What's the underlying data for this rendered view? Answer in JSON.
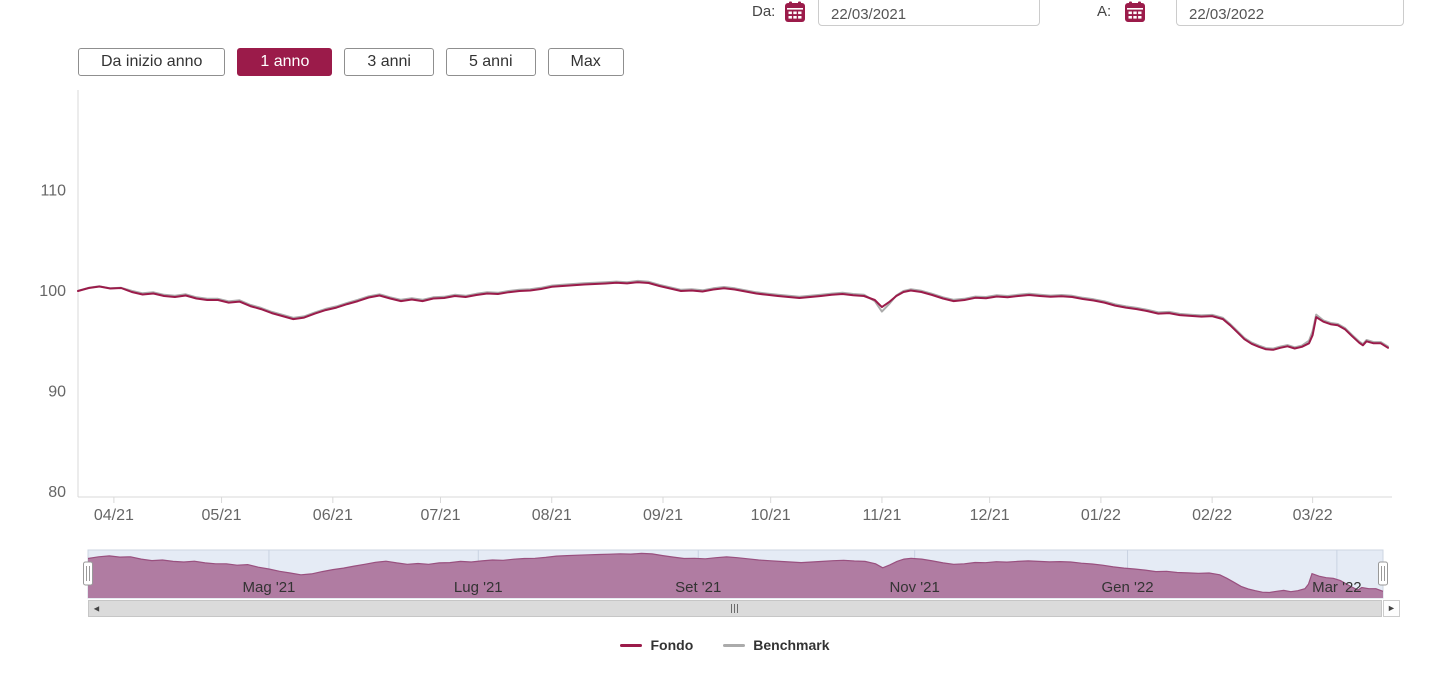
{
  "header": {
    "from_label": "Da:",
    "from_value": "22/03/2021",
    "to_label": "A:",
    "to_value": "22/03/2022"
  },
  "icons": {
    "from_calendar": "calendar-icon",
    "to_calendar": "calendar-icon",
    "scrollbar_left": "left-arrow-icon",
    "scrollbar_right": "right-arrow-icon"
  },
  "range_buttons": [
    {
      "label": "Da inizio anno",
      "selected": false
    },
    {
      "label": "1 anno",
      "selected": true
    },
    {
      "label": "3 anni",
      "selected": false
    },
    {
      "label": "5 anni",
      "selected": false
    },
    {
      "label": "Max",
      "selected": false
    }
  ],
  "colors": {
    "accent": "#9B1B4A",
    "benchmark": "#ABABAB",
    "axis_line": "#D9D9D9",
    "axis_text": "#666666",
    "nav_bg": "#E5EBF5",
    "nav_fill": "#B07CA2",
    "nav_line": "#99507F",
    "nav_grid": "#C9D2E2",
    "nav_text": "#333333",
    "scrollbar_track": "#DBDBDB",
    "scrollbar_border": "#C6C6C6"
  },
  "scrollbar": {
    "left_arrow": "◄",
    "right_arrow": "►"
  },
  "navigator": {
    "labels": [
      {
        "text": "Mag '21",
        "day": 51
      },
      {
        "text": "Lug '21",
        "day": 110
      },
      {
        "text": "Set '21",
        "day": 172
      },
      {
        "text": "Nov '21",
        "day": 233
      },
      {
        "text": "Gen '22",
        "day": 293
      },
      {
        "text": "Mar '22",
        "day": 352
      }
    ]
  },
  "chart_data": {
    "type": "line",
    "title": "",
    "xlabel": "",
    "ylabel": "",
    "grid": false,
    "legend_position": "bottom",
    "y_ticks": [
      80,
      90,
      100,
      110
    ],
    "ylim": [
      80,
      120
    ],
    "x_axis": {
      "unit": "days from 22/03/2021",
      "range": [
        0,
        365
      ]
    },
    "x_ticks": [
      {
        "label": "04/21",
        "day": 10
      },
      {
        "label": "05/21",
        "day": 40
      },
      {
        "label": "06/21",
        "day": 71
      },
      {
        "label": "07/21",
        "day": 101
      },
      {
        "label": "08/21",
        "day": 132
      },
      {
        "label": "09/21",
        "day": 163
      },
      {
        "label": "10/21",
        "day": 193
      },
      {
        "label": "11/21",
        "day": 224
      },
      {
        "label": "12/21",
        "day": 254
      },
      {
        "label": "01/22",
        "day": 285
      },
      {
        "label": "02/22",
        "day": 316
      },
      {
        "label": "03/22",
        "day": 344
      }
    ],
    "days": [
      0,
      3,
      6,
      9,
      12,
      15,
      18,
      21,
      24,
      27,
      30,
      33,
      36,
      39,
      42,
      45,
      48,
      51,
      54,
      57,
      60,
      63,
      66,
      69,
      72,
      75,
      78,
      81,
      84,
      87,
      90,
      93,
      96,
      99,
      102,
      105,
      108,
      111,
      114,
      117,
      120,
      123,
      126,
      129,
      132,
      135,
      138,
      141,
      144,
      147,
      150,
      153,
      156,
      159,
      162,
      165,
      168,
      171,
      174,
      177,
      180,
      183,
      186,
      189,
      192,
      195,
      198,
      201,
      204,
      207,
      210,
      213,
      216,
      219,
      222,
      224,
      226,
      228,
      230,
      232,
      235,
      238,
      241,
      244,
      247,
      250,
      253,
      256,
      259,
      262,
      265,
      268,
      271,
      274,
      277,
      280,
      283,
      286,
      289,
      292,
      295,
      298,
      301,
      304,
      307,
      310,
      313,
      316,
      319,
      321,
      323,
      325,
      327,
      329,
      331,
      333,
      335,
      337,
      339,
      341,
      343,
      344,
      345,
      347,
      349,
      351,
      353,
      355,
      357,
      358,
      359,
      361,
      363,
      365
    ],
    "series": [
      {
        "name": "Fondo",
        "color": "#9B1B4A",
        "values": [
          100.0,
          100.3,
          100.45,
          100.25,
          100.3,
          99.9,
          99.65,
          99.75,
          99.5,
          99.4,
          99.55,
          99.25,
          99.1,
          99.1,
          98.85,
          98.95,
          98.5,
          98.2,
          97.8,
          97.5,
          97.2,
          97.35,
          97.75,
          98.1,
          98.35,
          98.7,
          99.0,
          99.35,
          99.55,
          99.25,
          99.0,
          99.15,
          99.0,
          99.25,
          99.3,
          99.5,
          99.4,
          99.6,
          99.75,
          99.7,
          99.88,
          100.0,
          100.05,
          100.2,
          100.42,
          100.5,
          100.58,
          100.65,
          100.7,
          100.75,
          100.82,
          100.76,
          100.88,
          100.8,
          100.5,
          100.25,
          100.0,
          100.05,
          99.95,
          100.15,
          100.28,
          100.15,
          99.95,
          99.75,
          99.62,
          99.5,
          99.4,
          99.3,
          99.4,
          99.5,
          99.62,
          99.7,
          99.58,
          99.5,
          99.1,
          98.4,
          98.9,
          99.5,
          99.9,
          100.05,
          99.9,
          99.6,
          99.25,
          99.0,
          99.1,
          99.32,
          99.28,
          99.45,
          99.38,
          99.5,
          99.6,
          99.5,
          99.42,
          99.48,
          99.4,
          99.2,
          99.05,
          98.85,
          98.55,
          98.35,
          98.2,
          98.0,
          97.75,
          97.8,
          97.6,
          97.52,
          97.45,
          97.5,
          97.2,
          96.6,
          95.9,
          95.2,
          94.75,
          94.45,
          94.2,
          94.15,
          94.35,
          94.5,
          94.28,
          94.45,
          94.8,
          95.6,
          97.4,
          96.95,
          96.7,
          96.6,
          96.2,
          95.5,
          94.85,
          94.6,
          95.0,
          94.8,
          94.8,
          94.35
        ]
      },
      {
        "name": "Benchmark",
        "color": "#ABABAB",
        "values": [
          100.02,
          100.32,
          100.47,
          100.27,
          100.32,
          100.02,
          99.77,
          99.87,
          99.62,
          99.52,
          99.67,
          99.37,
          99.22,
          99.22,
          98.97,
          99.07,
          98.62,
          98.32,
          97.92,
          97.62,
          97.32,
          97.47,
          97.87,
          98.22,
          98.47,
          98.82,
          99.12,
          99.47,
          99.67,
          99.37,
          99.12,
          99.27,
          99.12,
          99.37,
          99.42,
          99.62,
          99.52,
          99.72,
          99.87,
          99.82,
          100.0,
          100.12,
          100.17,
          100.32,
          100.54,
          100.62,
          100.7,
          100.77,
          100.82,
          100.87,
          100.94,
          100.88,
          101.0,
          100.92,
          100.62,
          100.37,
          100.12,
          100.17,
          100.07,
          100.27,
          100.4,
          100.27,
          100.07,
          99.87,
          99.74,
          99.62,
          99.52,
          99.42,
          99.52,
          99.62,
          99.74,
          99.82,
          99.7,
          99.62,
          99.0,
          97.95,
          98.7,
          99.55,
          100.0,
          100.17,
          100.02,
          99.72,
          99.37,
          99.12,
          99.22,
          99.44,
          99.4,
          99.57,
          99.5,
          99.62,
          99.72,
          99.62,
          99.54,
          99.6,
          99.52,
          99.32,
          99.17,
          98.97,
          98.67,
          98.47,
          98.32,
          98.12,
          97.87,
          97.92,
          97.72,
          97.64,
          97.57,
          97.62,
          97.32,
          96.72,
          96.02,
          95.32,
          94.87,
          94.57,
          94.32,
          94.27,
          94.47,
          94.62,
          94.4,
          94.57,
          95.05,
          96.0,
          97.65,
          97.07,
          96.82,
          96.72,
          96.32,
          95.62,
          94.97,
          94.72,
          95.12,
          94.92,
          94.92,
          94.47
        ]
      }
    ]
  }
}
